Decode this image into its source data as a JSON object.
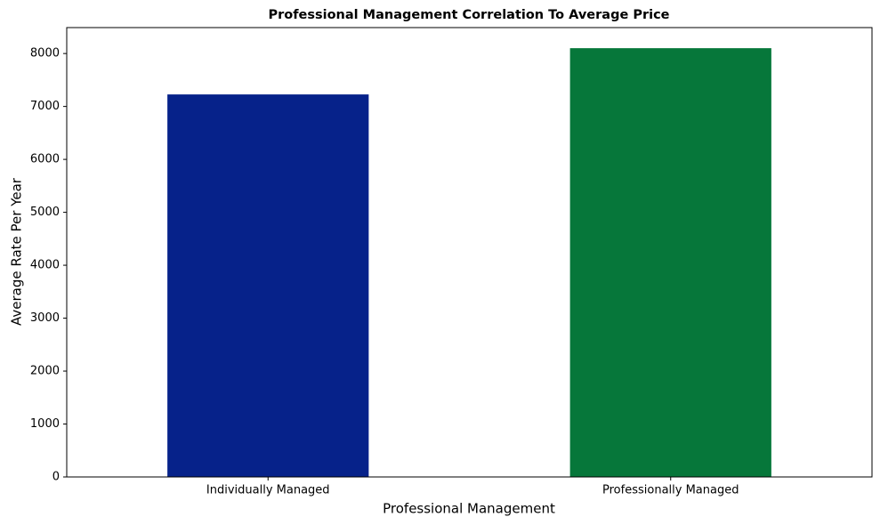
{
  "chart_data": {
    "type": "bar",
    "title": "Professional Management Correlation To Average Price",
    "x_label": "Professional Management",
    "y_label": "Average Rate Per Year",
    "categories": [
      "Individually Managed",
      "Professionally Managed"
    ],
    "values": [
      7227,
      8101
    ],
    "colors": [
      "#06228a",
      "#06773a"
    ],
    "ylim": [
      0,
      8490
    ],
    "yticks": [
      0,
      1000,
      2000,
      3000,
      4000,
      5000,
      6000,
      7000,
      8000
    ],
    "grid": false
  }
}
